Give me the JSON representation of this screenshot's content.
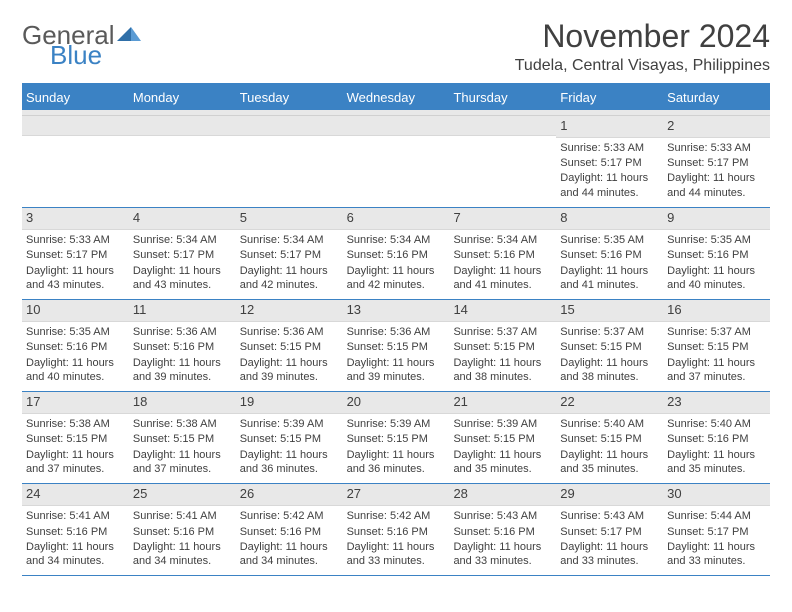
{
  "logo": {
    "text1": "General",
    "text2": "Blue"
  },
  "title": "November 2024",
  "location": "Tudela, Central Visayas, Philippines",
  "weekdays": [
    "Sunday",
    "Monday",
    "Tuesday",
    "Wednesday",
    "Thursday",
    "Friday",
    "Saturday"
  ],
  "colors": {
    "accent": "#3b82c4",
    "headerText": "#ffffff",
    "bodyText": "#404040",
    "numBg": "#e8e8e8"
  },
  "weeks": [
    [
      {
        "n": "",
        "sr": "",
        "ss": "",
        "dl": ""
      },
      {
        "n": "",
        "sr": "",
        "ss": "",
        "dl": ""
      },
      {
        "n": "",
        "sr": "",
        "ss": "",
        "dl": ""
      },
      {
        "n": "",
        "sr": "",
        "ss": "",
        "dl": ""
      },
      {
        "n": "",
        "sr": "",
        "ss": "",
        "dl": ""
      },
      {
        "n": "1",
        "sr": "Sunrise: 5:33 AM",
        "ss": "Sunset: 5:17 PM",
        "dl": "Daylight: 11 hours and 44 minutes."
      },
      {
        "n": "2",
        "sr": "Sunrise: 5:33 AM",
        "ss": "Sunset: 5:17 PM",
        "dl": "Daylight: 11 hours and 44 minutes."
      }
    ],
    [
      {
        "n": "3",
        "sr": "Sunrise: 5:33 AM",
        "ss": "Sunset: 5:17 PM",
        "dl": "Daylight: 11 hours and 43 minutes."
      },
      {
        "n": "4",
        "sr": "Sunrise: 5:34 AM",
        "ss": "Sunset: 5:17 PM",
        "dl": "Daylight: 11 hours and 43 minutes."
      },
      {
        "n": "5",
        "sr": "Sunrise: 5:34 AM",
        "ss": "Sunset: 5:17 PM",
        "dl": "Daylight: 11 hours and 42 minutes."
      },
      {
        "n": "6",
        "sr": "Sunrise: 5:34 AM",
        "ss": "Sunset: 5:16 PM",
        "dl": "Daylight: 11 hours and 42 minutes."
      },
      {
        "n": "7",
        "sr": "Sunrise: 5:34 AM",
        "ss": "Sunset: 5:16 PM",
        "dl": "Daylight: 11 hours and 41 minutes."
      },
      {
        "n": "8",
        "sr": "Sunrise: 5:35 AM",
        "ss": "Sunset: 5:16 PM",
        "dl": "Daylight: 11 hours and 41 minutes."
      },
      {
        "n": "9",
        "sr": "Sunrise: 5:35 AM",
        "ss": "Sunset: 5:16 PM",
        "dl": "Daylight: 11 hours and 40 minutes."
      }
    ],
    [
      {
        "n": "10",
        "sr": "Sunrise: 5:35 AM",
        "ss": "Sunset: 5:16 PM",
        "dl": "Daylight: 11 hours and 40 minutes."
      },
      {
        "n": "11",
        "sr": "Sunrise: 5:36 AM",
        "ss": "Sunset: 5:16 PM",
        "dl": "Daylight: 11 hours and 39 minutes."
      },
      {
        "n": "12",
        "sr": "Sunrise: 5:36 AM",
        "ss": "Sunset: 5:15 PM",
        "dl": "Daylight: 11 hours and 39 minutes."
      },
      {
        "n": "13",
        "sr": "Sunrise: 5:36 AM",
        "ss": "Sunset: 5:15 PM",
        "dl": "Daylight: 11 hours and 39 minutes."
      },
      {
        "n": "14",
        "sr": "Sunrise: 5:37 AM",
        "ss": "Sunset: 5:15 PM",
        "dl": "Daylight: 11 hours and 38 minutes."
      },
      {
        "n": "15",
        "sr": "Sunrise: 5:37 AM",
        "ss": "Sunset: 5:15 PM",
        "dl": "Daylight: 11 hours and 38 minutes."
      },
      {
        "n": "16",
        "sr": "Sunrise: 5:37 AM",
        "ss": "Sunset: 5:15 PM",
        "dl": "Daylight: 11 hours and 37 minutes."
      }
    ],
    [
      {
        "n": "17",
        "sr": "Sunrise: 5:38 AM",
        "ss": "Sunset: 5:15 PM",
        "dl": "Daylight: 11 hours and 37 minutes."
      },
      {
        "n": "18",
        "sr": "Sunrise: 5:38 AM",
        "ss": "Sunset: 5:15 PM",
        "dl": "Daylight: 11 hours and 37 minutes."
      },
      {
        "n": "19",
        "sr": "Sunrise: 5:39 AM",
        "ss": "Sunset: 5:15 PM",
        "dl": "Daylight: 11 hours and 36 minutes."
      },
      {
        "n": "20",
        "sr": "Sunrise: 5:39 AM",
        "ss": "Sunset: 5:15 PM",
        "dl": "Daylight: 11 hours and 36 minutes."
      },
      {
        "n": "21",
        "sr": "Sunrise: 5:39 AM",
        "ss": "Sunset: 5:15 PM",
        "dl": "Daylight: 11 hours and 35 minutes."
      },
      {
        "n": "22",
        "sr": "Sunrise: 5:40 AM",
        "ss": "Sunset: 5:15 PM",
        "dl": "Daylight: 11 hours and 35 minutes."
      },
      {
        "n": "23",
        "sr": "Sunrise: 5:40 AM",
        "ss": "Sunset: 5:16 PM",
        "dl": "Daylight: 11 hours and 35 minutes."
      }
    ],
    [
      {
        "n": "24",
        "sr": "Sunrise: 5:41 AM",
        "ss": "Sunset: 5:16 PM",
        "dl": "Daylight: 11 hours and 34 minutes."
      },
      {
        "n": "25",
        "sr": "Sunrise: 5:41 AM",
        "ss": "Sunset: 5:16 PM",
        "dl": "Daylight: 11 hours and 34 minutes."
      },
      {
        "n": "26",
        "sr": "Sunrise: 5:42 AM",
        "ss": "Sunset: 5:16 PM",
        "dl": "Daylight: 11 hours and 34 minutes."
      },
      {
        "n": "27",
        "sr": "Sunrise: 5:42 AM",
        "ss": "Sunset: 5:16 PM",
        "dl": "Daylight: 11 hours and 33 minutes."
      },
      {
        "n": "28",
        "sr": "Sunrise: 5:43 AM",
        "ss": "Sunset: 5:16 PM",
        "dl": "Daylight: 11 hours and 33 minutes."
      },
      {
        "n": "29",
        "sr": "Sunrise: 5:43 AM",
        "ss": "Sunset: 5:17 PM",
        "dl": "Daylight: 11 hours and 33 minutes."
      },
      {
        "n": "30",
        "sr": "Sunrise: 5:44 AM",
        "ss": "Sunset: 5:17 PM",
        "dl": "Daylight: 11 hours and 33 minutes."
      }
    ]
  ]
}
